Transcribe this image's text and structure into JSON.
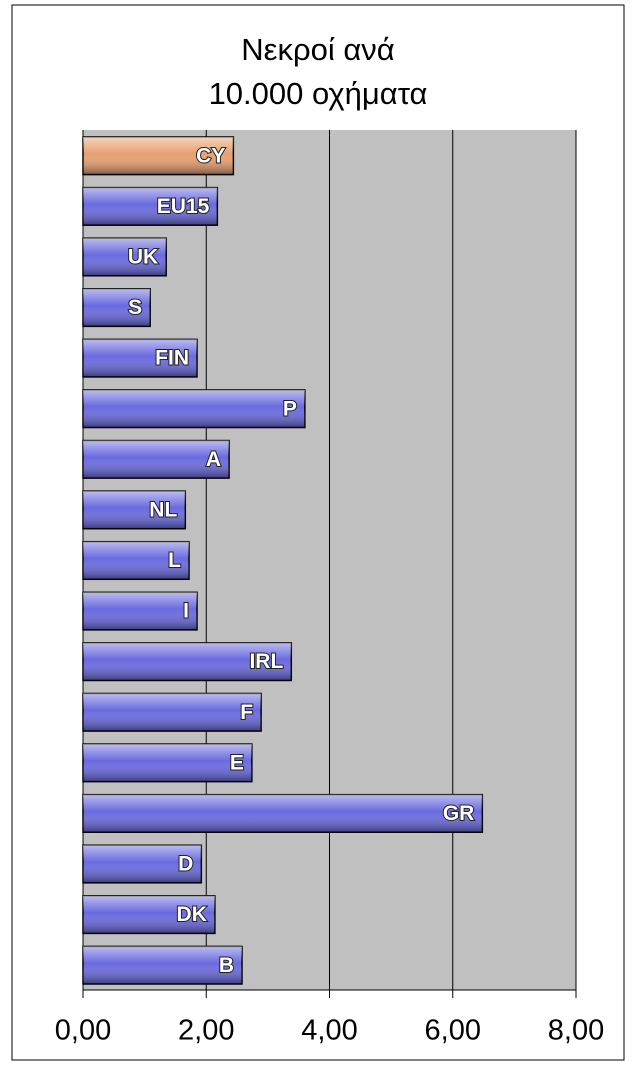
{
  "chart_data": {
    "type": "bar",
    "orientation": "horizontal",
    "title": [
      "Νεκροί ανά",
      "10.000 οχήματα"
    ],
    "categories": [
      "CY",
      "EU15",
      "UK",
      "S",
      "FIN",
      "P",
      "A",
      "NL",
      "L",
      "I",
      "IRL",
      "F",
      "E",
      "GR",
      "D",
      "DK",
      "B"
    ],
    "values": [
      2.44,
      2.18,
      1.35,
      1.09,
      1.85,
      3.6,
      2.37,
      1.66,
      1.72,
      1.85,
      3.38,
      2.89,
      2.74,
      6.48,
      1.92,
      2.14,
      2.58
    ],
    "colors": [
      "#e8a070",
      "#6a6ae0",
      "#6a6ae0",
      "#6a6ae0",
      "#6a6ae0",
      "#6a6ae0",
      "#6a6ae0",
      "#6a6ae0",
      "#6a6ae0",
      "#6a6ae0",
      "#6a6ae0",
      "#6a6ae0",
      "#6a6ae0",
      "#6a6ae0",
      "#6a6ae0",
      "#6a6ae0",
      "#6a6ae0"
    ],
    "xlim": [
      0,
      8
    ],
    "xticks": [
      {
        "value": 0,
        "label": "0,00"
      },
      {
        "value": 2,
        "label": "2,00"
      },
      {
        "value": 4,
        "label": "4,00"
      },
      {
        "value": 6,
        "label": "6,00"
      },
      {
        "value": 8,
        "label": "8,00"
      }
    ],
    "grid": true
  }
}
